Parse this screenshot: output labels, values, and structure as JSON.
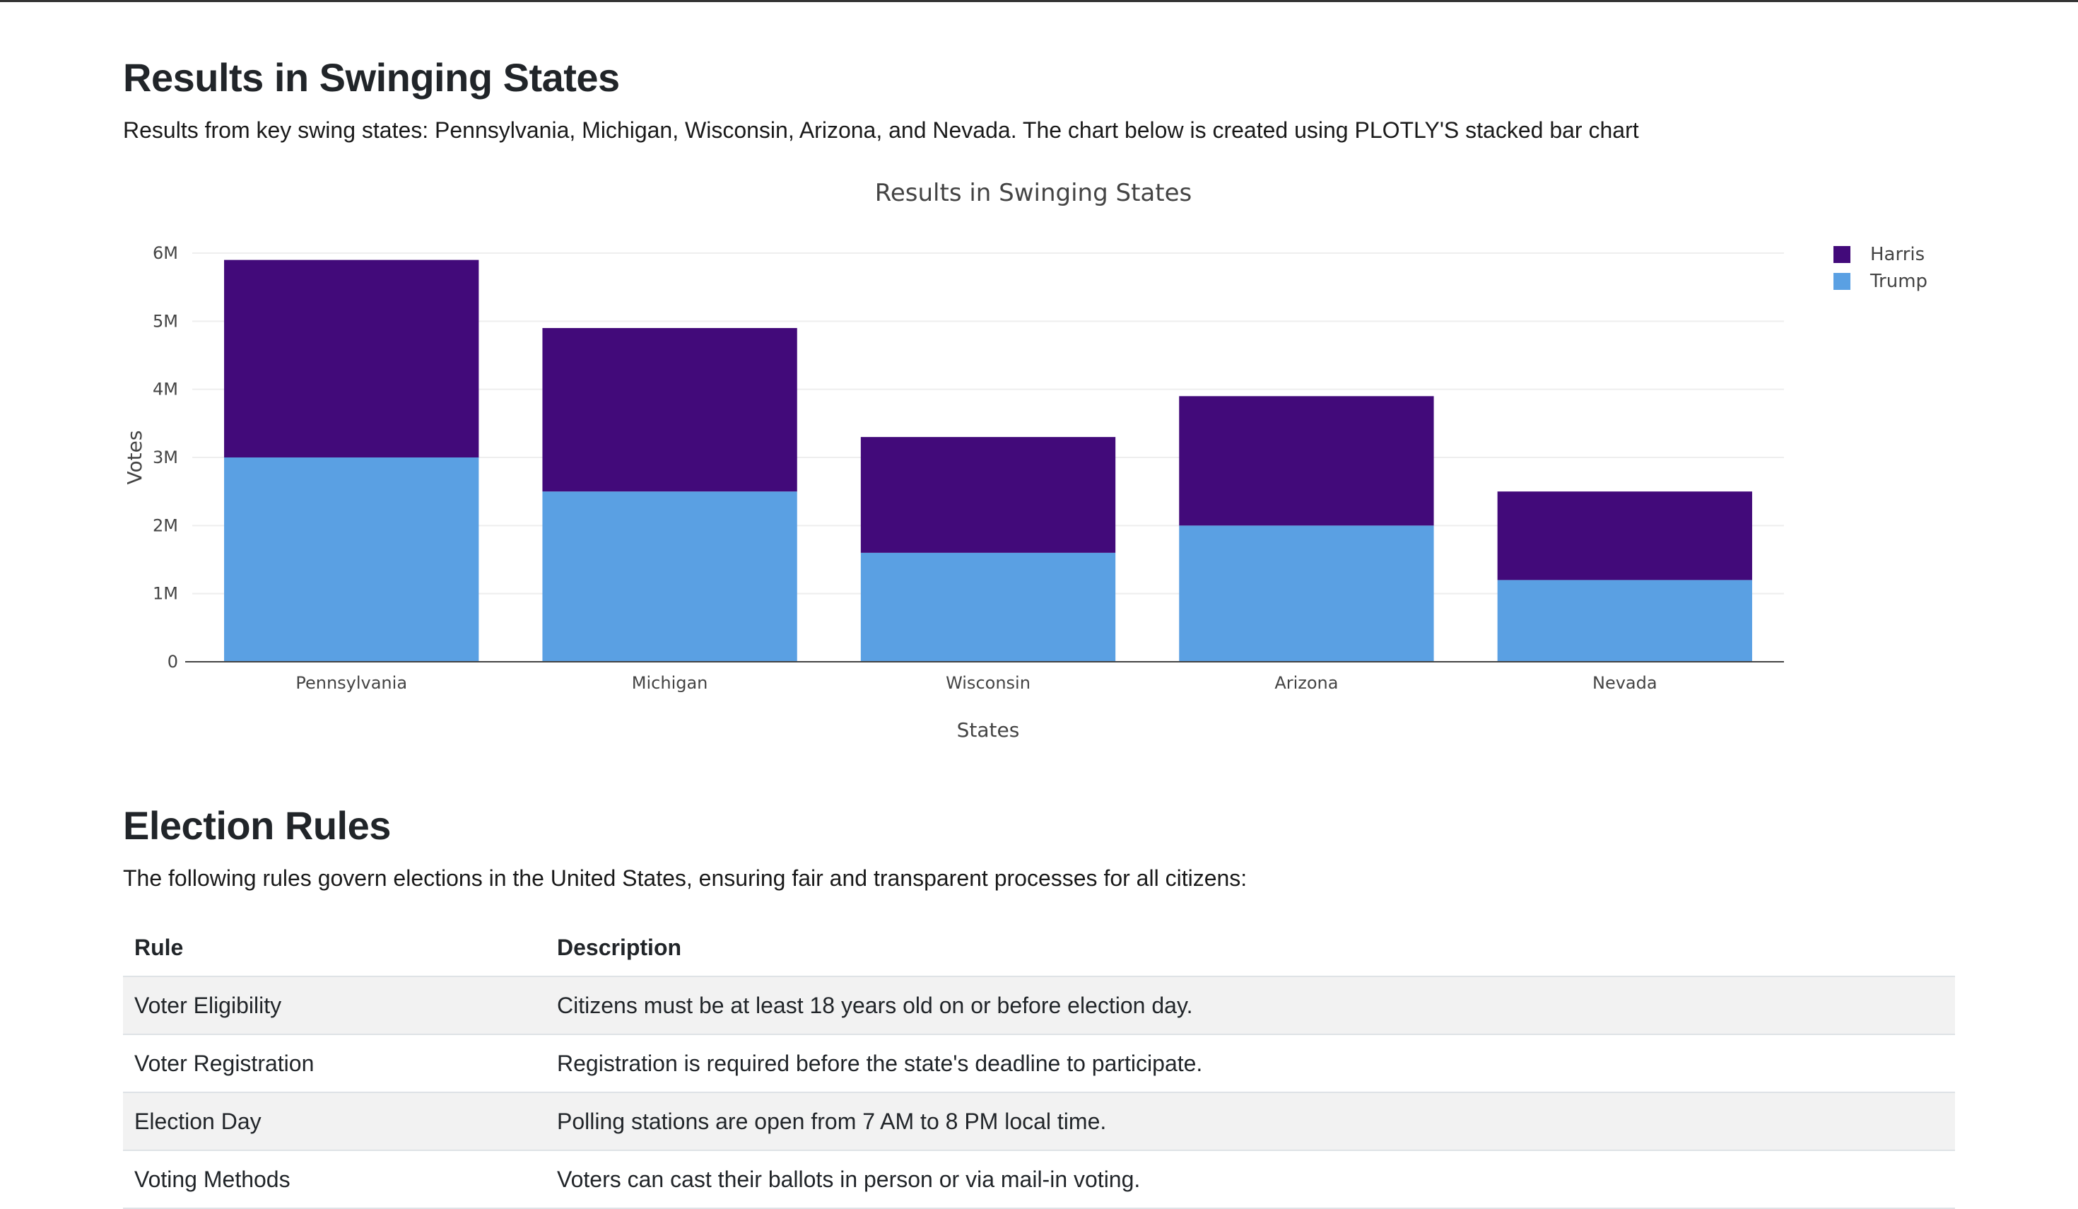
{
  "section_results": {
    "title": "Results in Swinging States",
    "description": "Results from key swing states: Pennsylvania, Michigan, Wisconsin, Arizona, and Nevada. The chart below is created using PLOTLY'S stacked bar chart"
  },
  "chart_data": {
    "type": "bar",
    "stacked": true,
    "title": "Results in Swinging States",
    "xlabel": "States",
    "ylabel": "Votes",
    "categories": [
      "Pennsylvania",
      "Michigan",
      "Wisconsin",
      "Arizona",
      "Nevada"
    ],
    "series": [
      {
        "name": "Trump",
        "color": "#5aa0e3",
        "values": [
          3000000,
          2500000,
          1600000,
          2000000,
          1200000
        ]
      },
      {
        "name": "Harris",
        "color": "#420a7a",
        "values": [
          2900000,
          2400000,
          1700000,
          1900000,
          1300000
        ]
      }
    ],
    "ylim": [
      0,
      6000000
    ],
    "yticks": [
      0,
      1000000,
      2000000,
      3000000,
      4000000,
      5000000,
      6000000
    ],
    "ytick_labels": [
      "0",
      "1M",
      "2M",
      "3M",
      "4M",
      "5M",
      "6M"
    ],
    "legend": [
      {
        "name": "Harris",
        "color": "#420a7a"
      },
      {
        "name": "Trump",
        "color": "#5aa0e3"
      }
    ],
    "legend_position": "top-right",
    "grid": true
  },
  "section_rules": {
    "title": "Election Rules",
    "description": "The following rules govern elections in the United States, ensuring fair and transparent processes for all citizens:",
    "headers": {
      "rule": "Rule",
      "description": "Description"
    },
    "rows": [
      {
        "rule": "Voter Eligibility",
        "description": "Citizens must be at least 18 years old on or before election day."
      },
      {
        "rule": "Voter Registration",
        "description": "Registration is required before the state's deadline to participate."
      },
      {
        "rule": "Election Day",
        "description": "Polling stations are open from 7 AM to 8 PM local time."
      },
      {
        "rule": "Voting Methods",
        "description": "Voters can cast their ballots in person or via mail-in voting."
      }
    ]
  }
}
